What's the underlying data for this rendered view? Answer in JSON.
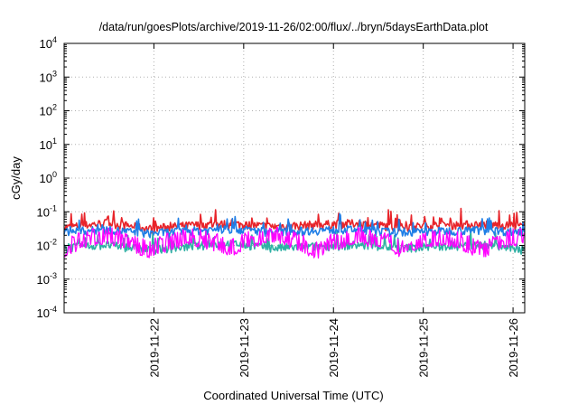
{
  "chart_data": {
    "type": "line",
    "title": "/data/run/goesPlots/archive/2019-11-26/02:00/flux/../bryn/5daysEarthData.plot",
    "xlabel": "Coordinated Universal Time (UTC)",
    "ylabel": "cGy/day",
    "y_scale": "log",
    "ylim": [
      0.0001,
      10000
    ],
    "xlim_days": [
      21.0,
      26.13
    ],
    "grid": true,
    "y_ticks": [
      {
        "mant": "10",
        "exp": "-4"
      },
      {
        "mant": "10",
        "exp": "-3"
      },
      {
        "mant": "10",
        "exp": "-2"
      },
      {
        "mant": "10",
        "exp": "-1"
      },
      {
        "mant": "10",
        "exp": "0"
      },
      {
        "mant": "10",
        "exp": "1"
      },
      {
        "mant": "10",
        "exp": "2"
      },
      {
        "mant": "10",
        "exp": "3"
      },
      {
        "mant": "10",
        "exp": "4"
      }
    ],
    "x_ticks": [
      {
        "day": 22,
        "label": "2019-11-22"
      },
      {
        "day": 23,
        "label": "2019-11-23"
      },
      {
        "day": 24,
        "label": "2019-11-24"
      },
      {
        "day": 25,
        "label": "2019-11-25"
      },
      {
        "day": 26,
        "label": "2019-11-26"
      }
    ],
    "series": [
      {
        "color": "#e8242a",
        "values": [
          0.032,
          0.045,
          0.03,
          0.038,
          0.042,
          0.035,
          0.04,
          0.044,
          0.033,
          0.039,
          0.041,
          0.036
        ]
      },
      {
        "color": "#2fb0a4",
        "values": [
          0.008,
          0.01,
          0.007,
          0.009,
          0.011,
          0.008,
          0.009,
          0.01,
          0.008,
          0.009,
          0.01,
          0.007
        ]
      },
      {
        "color": "#1f7ee6",
        "values": [
          0.025,
          0.028,
          0.022,
          0.026,
          0.03,
          0.024,
          0.027,
          0.029,
          0.023,
          0.026,
          0.028,
          0.024
        ]
      },
      {
        "color": "#ff00ff",
        "values": [
          0.005,
          0.012,
          0.004,
          0.011,
          0.005,
          0.013,
          0.004,
          0.012,
          0.005,
          0.011,
          0.004,
          0.012
        ]
      }
    ]
  }
}
